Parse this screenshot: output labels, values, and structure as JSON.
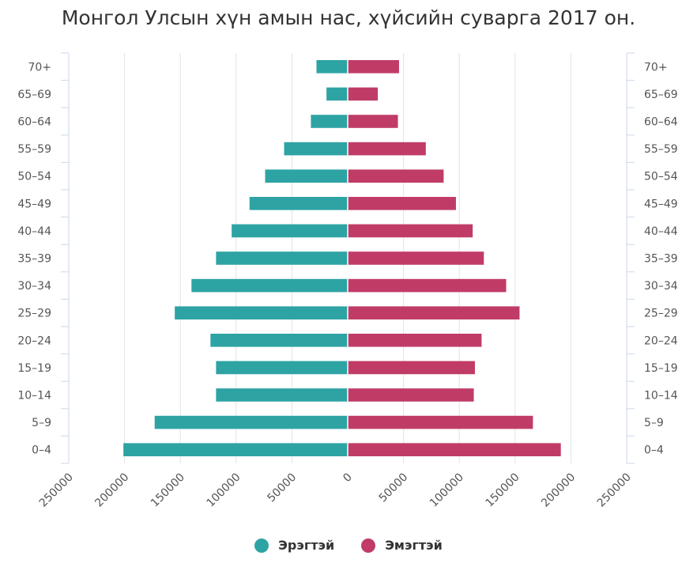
{
  "chart_data": {
    "type": "bar",
    "title": "Монгол Улсын хүн амын нас, хүйсийн суварга 2017 он.",
    "categories": [
      "0–4",
      "5–9",
      "10–14",
      "15–19",
      "20–24",
      "25–29",
      "30–34",
      "35–39",
      "40–44",
      "45–49",
      "50–54",
      "55–59",
      "60–64",
      "65–69",
      "70+"
    ],
    "series": [
      {
        "name": "Эрэгтэй",
        "color": "#2ea3a3",
        "values": [
          201000,
          173000,
          118000,
          118000,
          123000,
          155000,
          140000,
          118000,
          104000,
          88000,
          74000,
          57000,
          33000,
          19000,
          28000
        ]
      },
      {
        "name": "Эмэгтэй",
        "color": "#c03c67",
        "values": [
          191000,
          166000,
          113000,
          114000,
          120000,
          154000,
          142000,
          122000,
          112000,
          97000,
          86000,
          70000,
          45000,
          27000,
          46000
        ]
      }
    ],
    "x_ticks": [
      "250000",
      "200000",
      "150000",
      "100000",
      "50000",
      "0",
      "50000",
      "100000",
      "150000",
      "200000",
      "250000"
    ],
    "xlim": [
      -250000,
      250000
    ],
    "grid": true,
    "legend_position": "bottom-center"
  }
}
